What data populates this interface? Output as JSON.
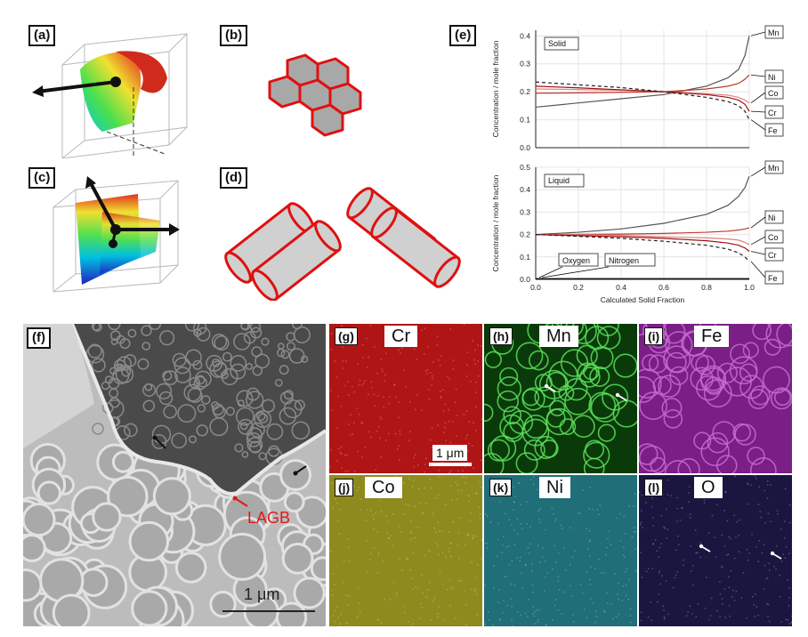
{
  "panels": {
    "a": "(a)",
    "b": "(b)",
    "c": "(c)",
    "d": "(d)",
    "e": "(e)",
    "f": "(f)",
    "g": "(g)",
    "h": "(h)",
    "i": "(i)",
    "j": "(j)",
    "k": "(k)",
    "l": "(l)"
  },
  "maps": {
    "g": {
      "element": "Cr",
      "color": "#b01515"
    },
    "h": {
      "element": "Mn",
      "color": "#1fa01f"
    },
    "i": {
      "element": "Fe",
      "color": "#9c2aa8"
    },
    "j": {
      "element": "Co",
      "color": "#8f8a1e"
    },
    "k": {
      "element": "Ni",
      "color": "#1f6e78"
    },
    "l": {
      "element": "O",
      "color": "#1a1640"
    }
  },
  "f_panel": {
    "annotation": "LAGB",
    "scalebar": "1 μm"
  },
  "g_scalebar": "1 μm",
  "chart_data": [
    {
      "type": "line",
      "title": "Solid",
      "ylabel": "Concentration / mole fraction",
      "ylim": [
        0,
        0.42
      ],
      "yticks": [
        "0.0",
        "0.1",
        "0.2",
        "0.3",
        "0.4"
      ],
      "xlim": [
        0,
        1.0
      ],
      "series": [
        {
          "name": "Mn",
          "x": [
            0,
            0.2,
            0.4,
            0.6,
            0.8,
            0.9,
            0.95,
            0.98,
            1.0
          ],
          "values": [
            0.145,
            0.16,
            0.175,
            0.19,
            0.22,
            0.25,
            0.28,
            0.33,
            0.4
          ]
        },
        {
          "name": "Ni",
          "x": [
            0,
            0.2,
            0.4,
            0.6,
            0.8,
            0.9,
            0.95,
            0.98,
            1.0
          ],
          "values": [
            0.195,
            0.196,
            0.198,
            0.2,
            0.21,
            0.22,
            0.23,
            0.245,
            0.26
          ]
        },
        {
          "name": "Co",
          "x": [
            0,
            0.2,
            0.4,
            0.6,
            0.8,
            0.9,
            0.95,
            0.98,
            1.0
          ],
          "values": [
            0.21,
            0.208,
            0.205,
            0.2,
            0.193,
            0.188,
            0.18,
            0.17,
            0.16
          ]
        },
        {
          "name": "Cr",
          "x": [
            0,
            0.2,
            0.4,
            0.6,
            0.8,
            0.9,
            0.95,
            0.98,
            1.0
          ],
          "values": [
            0.22,
            0.214,
            0.207,
            0.2,
            0.19,
            0.18,
            0.17,
            0.155,
            0.13
          ]
        },
        {
          "name": "Fe",
          "x": [
            0,
            0.2,
            0.4,
            0.6,
            0.8,
            0.9,
            0.95,
            0.98,
            1.0
          ],
          "values": [
            0.235,
            0.225,
            0.215,
            0.2,
            0.18,
            0.165,
            0.15,
            0.13,
            0.1
          ]
        }
      ]
    },
    {
      "type": "line",
      "title": "Liquid",
      "ylabel": "Concentration / mole fraction",
      "xlabel": "Calculated Solid Fraction",
      "ylim": [
        0,
        0.5
      ],
      "yticks": [
        "0.0",
        "0.1",
        "0.2",
        "0.3",
        "0.4",
        "0.5"
      ],
      "xlim": [
        0,
        1.0
      ],
      "xticks": [
        "0.0",
        "0.2",
        "0.4",
        "0.6",
        "0.8",
        "1.0"
      ],
      "annotations": [
        "Oxygen",
        "Nitrogen"
      ],
      "series": [
        {
          "name": "Mn",
          "x": [
            0,
            0.2,
            0.4,
            0.6,
            0.8,
            0.9,
            0.95,
            0.98,
            1.0
          ],
          "values": [
            0.2,
            0.21,
            0.225,
            0.25,
            0.29,
            0.33,
            0.37,
            0.41,
            0.46
          ]
        },
        {
          "name": "Ni",
          "x": [
            0,
            0.2,
            0.4,
            0.6,
            0.8,
            0.9,
            0.95,
            0.98,
            1.0
          ],
          "values": [
            0.2,
            0.201,
            0.202,
            0.205,
            0.21,
            0.215,
            0.22,
            0.225,
            0.23
          ]
        },
        {
          "name": "Co",
          "x": [
            0,
            0.2,
            0.4,
            0.6,
            0.8,
            0.9,
            0.95,
            0.98,
            1.0
          ],
          "values": [
            0.2,
            0.199,
            0.196,
            0.19,
            0.185,
            0.18,
            0.175,
            0.165,
            0.155
          ]
        },
        {
          "name": "Cr",
          "x": [
            0,
            0.2,
            0.4,
            0.6,
            0.8,
            0.9,
            0.95,
            0.98,
            1.0
          ],
          "values": [
            0.2,
            0.195,
            0.19,
            0.183,
            0.172,
            0.162,
            0.152,
            0.14,
            0.125
          ]
        },
        {
          "name": "Fe",
          "x": [
            0,
            0.2,
            0.4,
            0.6,
            0.8,
            0.9,
            0.95,
            0.98,
            1.0
          ],
          "values": [
            0.2,
            0.192,
            0.183,
            0.17,
            0.152,
            0.135,
            0.118,
            0.1,
            0.08
          ]
        },
        {
          "name": "Oxygen",
          "x": [
            0,
            1.0
          ],
          "values": [
            0.002,
            0.002
          ]
        },
        {
          "name": "Nitrogen",
          "x": [
            0,
            1.0
          ],
          "values": [
            0.003,
            0.003
          ]
        }
      ]
    }
  ]
}
